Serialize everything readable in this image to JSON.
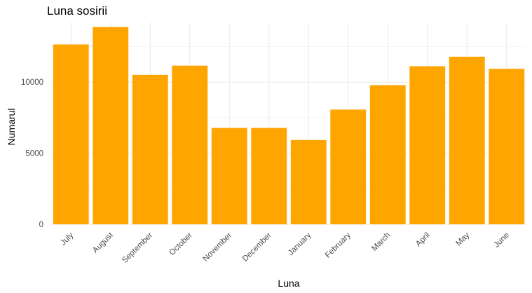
{
  "chart_data": {
    "type": "bar",
    "title": "Luna sosirii",
    "xlabel": "Luna",
    "ylabel": "Numarul",
    "categories": [
      "July",
      "August",
      "September",
      "October",
      "November",
      "December",
      "January",
      "February",
      "March",
      "April",
      "May",
      "June"
    ],
    "values": [
      12650,
      13880,
      10510,
      11160,
      6780,
      6780,
      5930,
      8070,
      9790,
      11120,
      11790,
      10940
    ],
    "ylim": [
      0,
      14200
    ],
    "yticks": [
      0,
      5000,
      10000
    ],
    "ytick_labels": [
      "0",
      "5000",
      "10000"
    ],
    "grid": true,
    "legend": "none",
    "bar_color": "#FFA500"
  }
}
